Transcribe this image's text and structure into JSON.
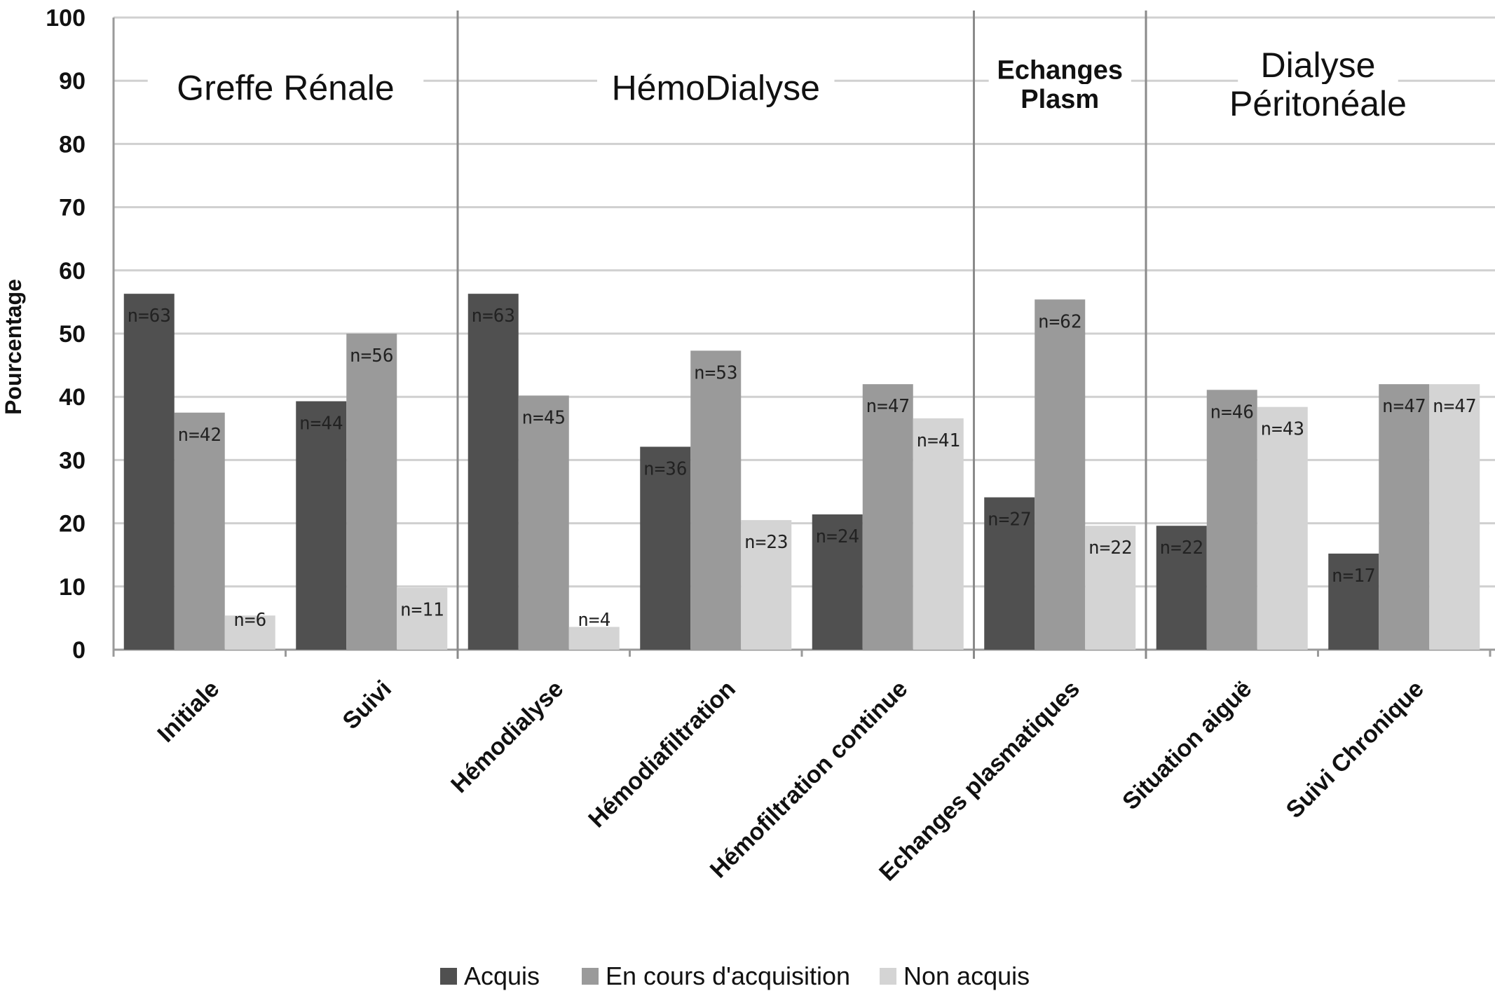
{
  "chart_data": {
    "type": "bar",
    "ylabel": "Pourcentage",
    "ylim": [
      0,
      100
    ],
    "yticks": [
      0,
      10,
      20,
      30,
      40,
      50,
      60,
      70,
      80,
      90,
      100
    ],
    "grid": true,
    "legend_position": "bottom",
    "categories": [
      "Initiale",
      "Suivi",
      "Hémodialyse",
      "Hémodiafiltration",
      "Hémofiltration continue",
      "Echanges plasmatiques",
      "Situation aiguë",
      "Suivi Chronique"
    ],
    "groups": [
      {
        "label_lines": [
          "Greffe Rénale"
        ],
        "categories": [
          "Initiale",
          "Suivi"
        ]
      },
      {
        "label_lines": [
          "HémoDialyse"
        ],
        "categories": [
          "Hémodialyse",
          "Hémodiafiltration",
          "Hémofiltration continue"
        ]
      },
      {
        "label_lines": [
          "Echanges",
          "Plasm"
        ],
        "categories": [
          "Echanges plasmatiques"
        ]
      },
      {
        "label_lines": [
          "Dialyse",
          "Péritonéale"
        ],
        "categories": [
          "Situation aiguë",
          "Suivi Chronique"
        ]
      }
    ],
    "series": [
      {
        "name": "Acquis",
        "color": "#505050",
        "values": [
          56.3,
          39.3,
          56.3,
          32.1,
          21.4,
          24.1,
          19.6,
          15.2
        ],
        "labels": [
          "n=63",
          "n=44",
          "n=63",
          "n=36",
          "n=24",
          "n=27",
          "n=22",
          "n=17"
        ]
      },
      {
        "name": "En cours d'acquisition",
        "color": "#9a9a9a",
        "values": [
          37.5,
          50.0,
          40.2,
          47.3,
          42.0,
          55.4,
          41.1,
          42.0
        ],
        "labels": [
          "n=42",
          "n=56",
          "n=45",
          "n=53",
          "n=47",
          "n=62",
          "n=46",
          "n=47"
        ]
      },
      {
        "name": "Non acquis",
        "color": "#d4d4d4",
        "values": [
          5.4,
          9.8,
          3.6,
          20.5,
          36.6,
          19.6,
          38.4,
          42.0
        ],
        "labels": [
          "n=6",
          "n=11",
          "n=4",
          "n=23",
          "n=41",
          "n=22",
          "n=43",
          "n=47"
        ]
      }
    ]
  }
}
